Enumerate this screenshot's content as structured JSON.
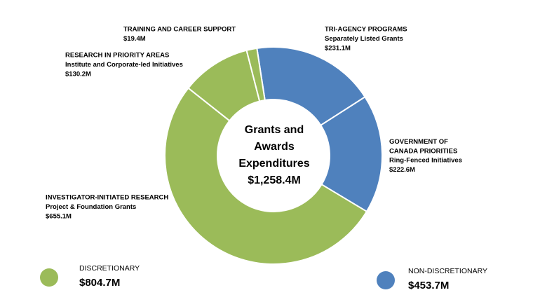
{
  "chart_data": {
    "type": "donut",
    "center_title": [
      "Grants and",
      "Awards",
      "Expenditures"
    ],
    "center_value": "$1,258.4M",
    "categories": [
      "TRI-AGENCY PROGRAMS",
      "GOVERNMENT OF CANADA PRIORITIES",
      "INVESTIGATOR-INITIATED RESEARCH",
      "RESEARCH IN PRIORITY AREAS",
      "TRAINING AND CAREER SUPPORT"
    ],
    "subtitles": [
      "Separately Listed Grants",
      "Ring-Fenced Initiatives",
      "Project & Foundation Grants",
      "Institute and Corporate-led Initiatives",
      null
    ],
    "values": [
      231.1,
      222.6,
      655.1,
      130.2,
      19.4
    ],
    "value_labels": [
      "$231.1M",
      "$222.6M",
      "$655.1M",
      "$130.2M",
      "$19.4M"
    ],
    "colors": [
      "#4f81bd",
      "#4f81bd",
      "#9bbb59",
      "#9bbb59",
      "#9bbb59"
    ],
    "legend": [
      {
        "name": "DISCRETIONARY",
        "label": "$804.7M",
        "color": "#9bbb59"
      },
      {
        "name": "NON-DISCRETIONARY",
        "label": "$453.7M",
        "color": "#4f81bd"
      }
    ]
  }
}
